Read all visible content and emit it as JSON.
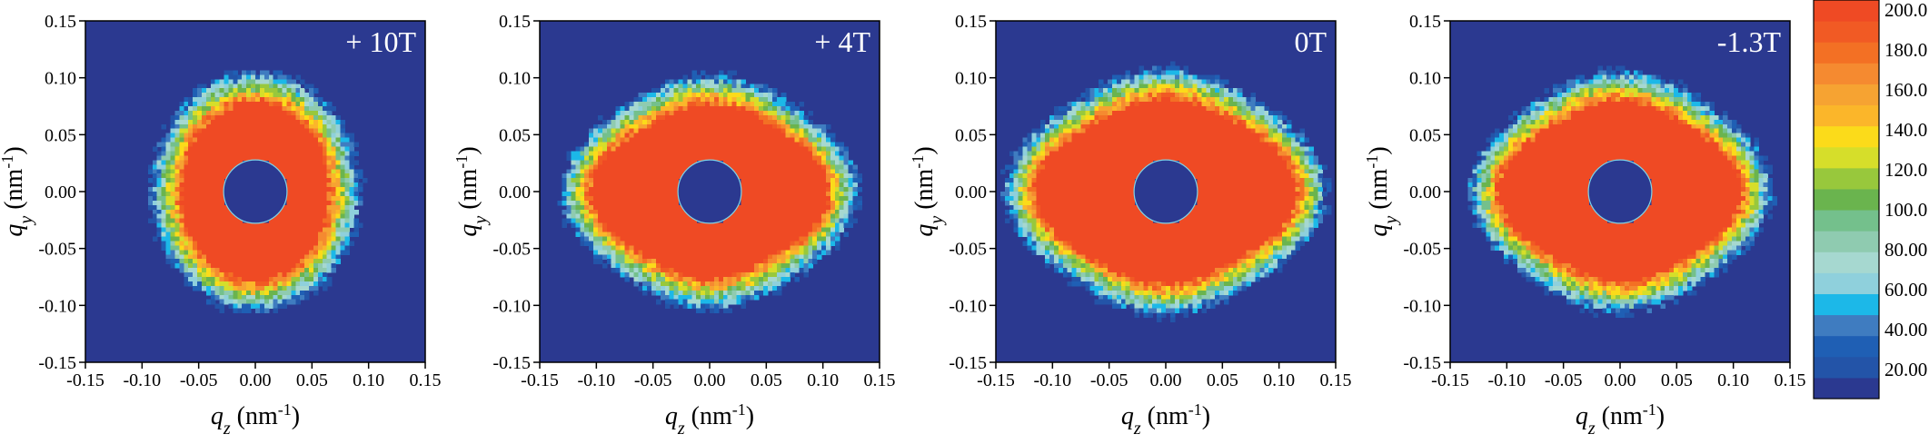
{
  "chart_data": [
    {
      "type": "heatmap",
      "field_label": "+ 10T",
      "xlabel": {
        "sym": "q",
        "sub": "z",
        "unit": " (nm",
        "exp": "-1",
        "close": ")"
      },
      "ylabel": {
        "sym": "q",
        "sub": "y",
        "unit": " (nm",
        "exp": "-1",
        "close": ")"
      },
      "xlim": [
        -0.15,
        0.15
      ],
      "ylim": [
        -0.15,
        0.15
      ],
      "xticks": [
        "-0.15",
        "-0.10",
        "-0.05",
        "0.00",
        "0.05",
        "0.10",
        "0.15"
      ],
      "yticks": [
        "0.15",
        "0.10",
        "0.05",
        "0.00",
        "-0.05",
        "-0.10",
        "-0.15"
      ],
      "beamstop_radius": 0.028,
      "pattern": {
        "rx": 0.062,
        "ry": 0.075,
        "tip": 0
      }
    },
    {
      "type": "heatmap",
      "field_label": "+ 4T",
      "xlabel": {
        "sym": "q",
        "sub": "z",
        "unit": " (nm",
        "exp": "-1",
        "close": ")"
      },
      "ylabel": {
        "sym": "q",
        "sub": "y",
        "unit": " (nm",
        "exp": "-1",
        "close": ")"
      },
      "xlim": [
        -0.15,
        0.15
      ],
      "ylim": [
        -0.15,
        0.15
      ],
      "xticks": [
        "-0.15",
        "-0.10",
        "-0.05",
        "0.00",
        "0.05",
        "0.10",
        "0.15"
      ],
      "yticks": [
        "0.15",
        "0.10",
        "0.05",
        "0.00",
        "-0.05",
        "-0.10",
        "-0.15"
      ],
      "beamstop_radius": 0.028,
      "pattern": {
        "rx": 0.092,
        "ry": 0.073,
        "tip": 1
      }
    },
    {
      "type": "heatmap",
      "field_label": "0T",
      "xlabel": {
        "sym": "q",
        "sub": "z",
        "unit": " (nm",
        "exp": "-1",
        "close": ")"
      },
      "ylabel": {
        "sym": "q",
        "sub": "y",
        "unit": " (nm",
        "exp": "-1",
        "close": ")"
      },
      "xlim": [
        -0.15,
        0.15
      ],
      "ylim": [
        -0.15,
        0.15
      ],
      "xticks": [
        "-0.15",
        "-0.10",
        "-0.05",
        "0.00",
        "0.05",
        "0.10",
        "0.15"
      ],
      "yticks": [
        "0.15",
        "0.10",
        "0.05",
        "0.00",
        "-0.05",
        "-0.10",
        "-0.15"
      ],
      "beamstop_radius": 0.028,
      "pattern": {
        "rx": 0.102,
        "ry": 0.078,
        "tip": 1
      }
    },
    {
      "type": "heatmap",
      "field_label": "-1.3T",
      "xlabel": {
        "sym": "q",
        "sub": "z",
        "unit": " (nm",
        "exp": "-1",
        "close": ")"
      },
      "ylabel": {
        "sym": "q",
        "sub": "y",
        "unit": " (nm",
        "exp": "-1",
        "close": ")"
      },
      "xlim": [
        -0.15,
        0.15
      ],
      "ylim": [
        -0.15,
        0.15
      ],
      "xticks": [
        "-0.15",
        "-0.10",
        "-0.05",
        "0.00",
        "0.05",
        "0.10",
        "0.15"
      ],
      "yticks": [
        "0.15",
        "0.10",
        "0.05",
        "0.00",
        "-0.05",
        "-0.10",
        "-0.15"
      ],
      "beamstop_radius": 0.028,
      "pattern": {
        "rx": 0.094,
        "ry": 0.076,
        "tip": 1
      }
    }
  ],
  "colorbar": {
    "labels": [
      "200.0",
      "180.0",
      "160.0",
      "140.0",
      "120.0",
      "100.0",
      "80.00",
      "60.00",
      "40.00",
      "20.00"
    ],
    "levels": [
      {
        "value": 20,
        "color": "#2b3990"
      },
      {
        "value": 30,
        "color": "#2354a8"
      },
      {
        "value": 40,
        "color": "#1f5fb4"
      },
      {
        "value": 50,
        "color": "#3f7cc0"
      },
      {
        "value": 60,
        "color": "#1cb8e8"
      },
      {
        "value": 70,
        "color": "#8fd0dc"
      },
      {
        "value": 80,
        "color": "#a6d8d0"
      },
      {
        "value": 90,
        "color": "#8fcbb0"
      },
      {
        "value": 100,
        "color": "#74c08c"
      },
      {
        "value": 110,
        "color": "#6ab44e"
      },
      {
        "value": 120,
        "color": "#98c83c"
      },
      {
        "value": 130,
        "color": "#d6de2a"
      },
      {
        "value": 140,
        "color": "#fbdb1a"
      },
      {
        "value": 150,
        "color": "#fbb62a"
      },
      {
        "value": 160,
        "color": "#f6a332"
      },
      {
        "value": 170,
        "color": "#f58a30"
      },
      {
        "value": 180,
        "color": "#f37024"
      },
      {
        "value": 190,
        "color": "#f15a24"
      },
      {
        "value": 200,
        "color": "#ef4a24"
      }
    ]
  }
}
